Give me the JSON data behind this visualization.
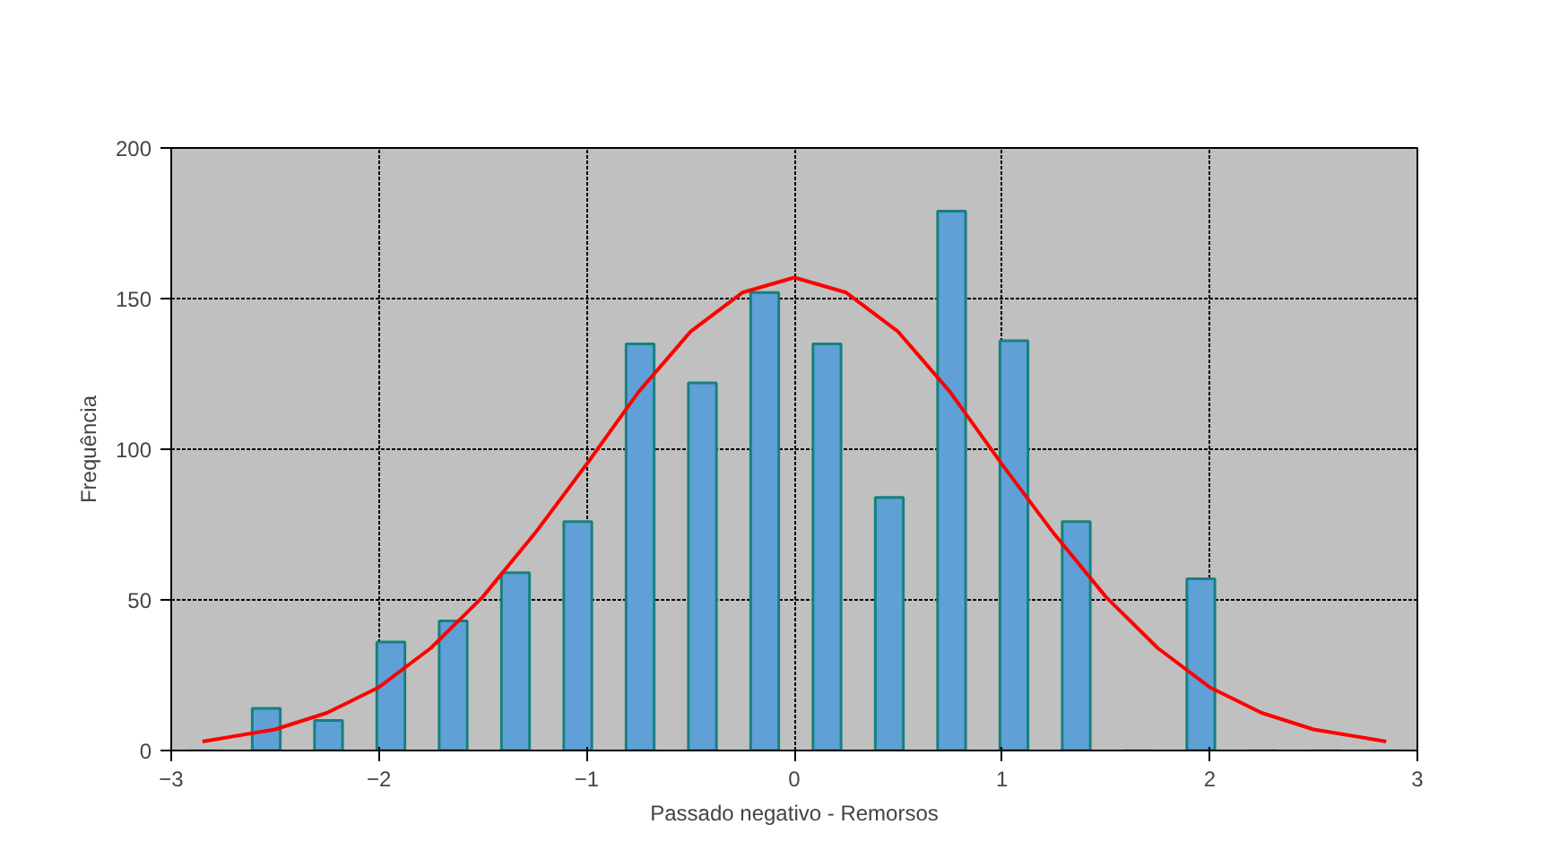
{
  "chart_data": {
    "type": "histogram",
    "xlabel": "Passado negativo - Remorsos",
    "ylabel": "Frequência",
    "xlim": [
      -3,
      3
    ],
    "xticks": [
      -3,
      -2,
      -1,
      0,
      1,
      2,
      3
    ],
    "ylim": [
      0,
      200
    ],
    "yticks": [
      0,
      50,
      100,
      150,
      200
    ],
    "grid": true,
    "series": [
      {
        "color": "#5fa0d6",
        "bins": [
          -3,
          -2.7,
          -2.4,
          -2.1,
          -1.8,
          -1.5,
          -1.2,
          -0.9,
          -0.6,
          -0.3,
          0,
          0.3,
          0.6,
          0.9,
          1.2,
          1.5,
          1.8,
          2.1,
          2.4,
          2.7,
          3
        ],
        "values": [
          0,
          14,
          10,
          36,
          43,
          59,
          76,
          135,
          122,
          152,
          135,
          84,
          179,
          136,
          76,
          0,
          57,
          0,
          0,
          0
        ]
      },
      {
        "type": "line",
        "color": "#ff0000",
        "x": [
          -2.85,
          -2.5,
          -2.25,
          -2,
          -1.75,
          -1.5,
          -1.25,
          -1,
          -0.75,
          -0.5,
          -0.25,
          0,
          0.25,
          0.5,
          0.75,
          1,
          1.25,
          1.5,
          1.75,
          2,
          2.25,
          2.5,
          2.85
        ],
        "values": [
          3,
          7,
          12.5,
          21,
          34,
          51,
          72,
          95,
          119,
          139,
          152,
          157,
          152,
          139,
          119,
          95,
          72,
          51,
          34,
          21,
          12.5,
          7,
          3
        ]
      }
    ]
  }
}
